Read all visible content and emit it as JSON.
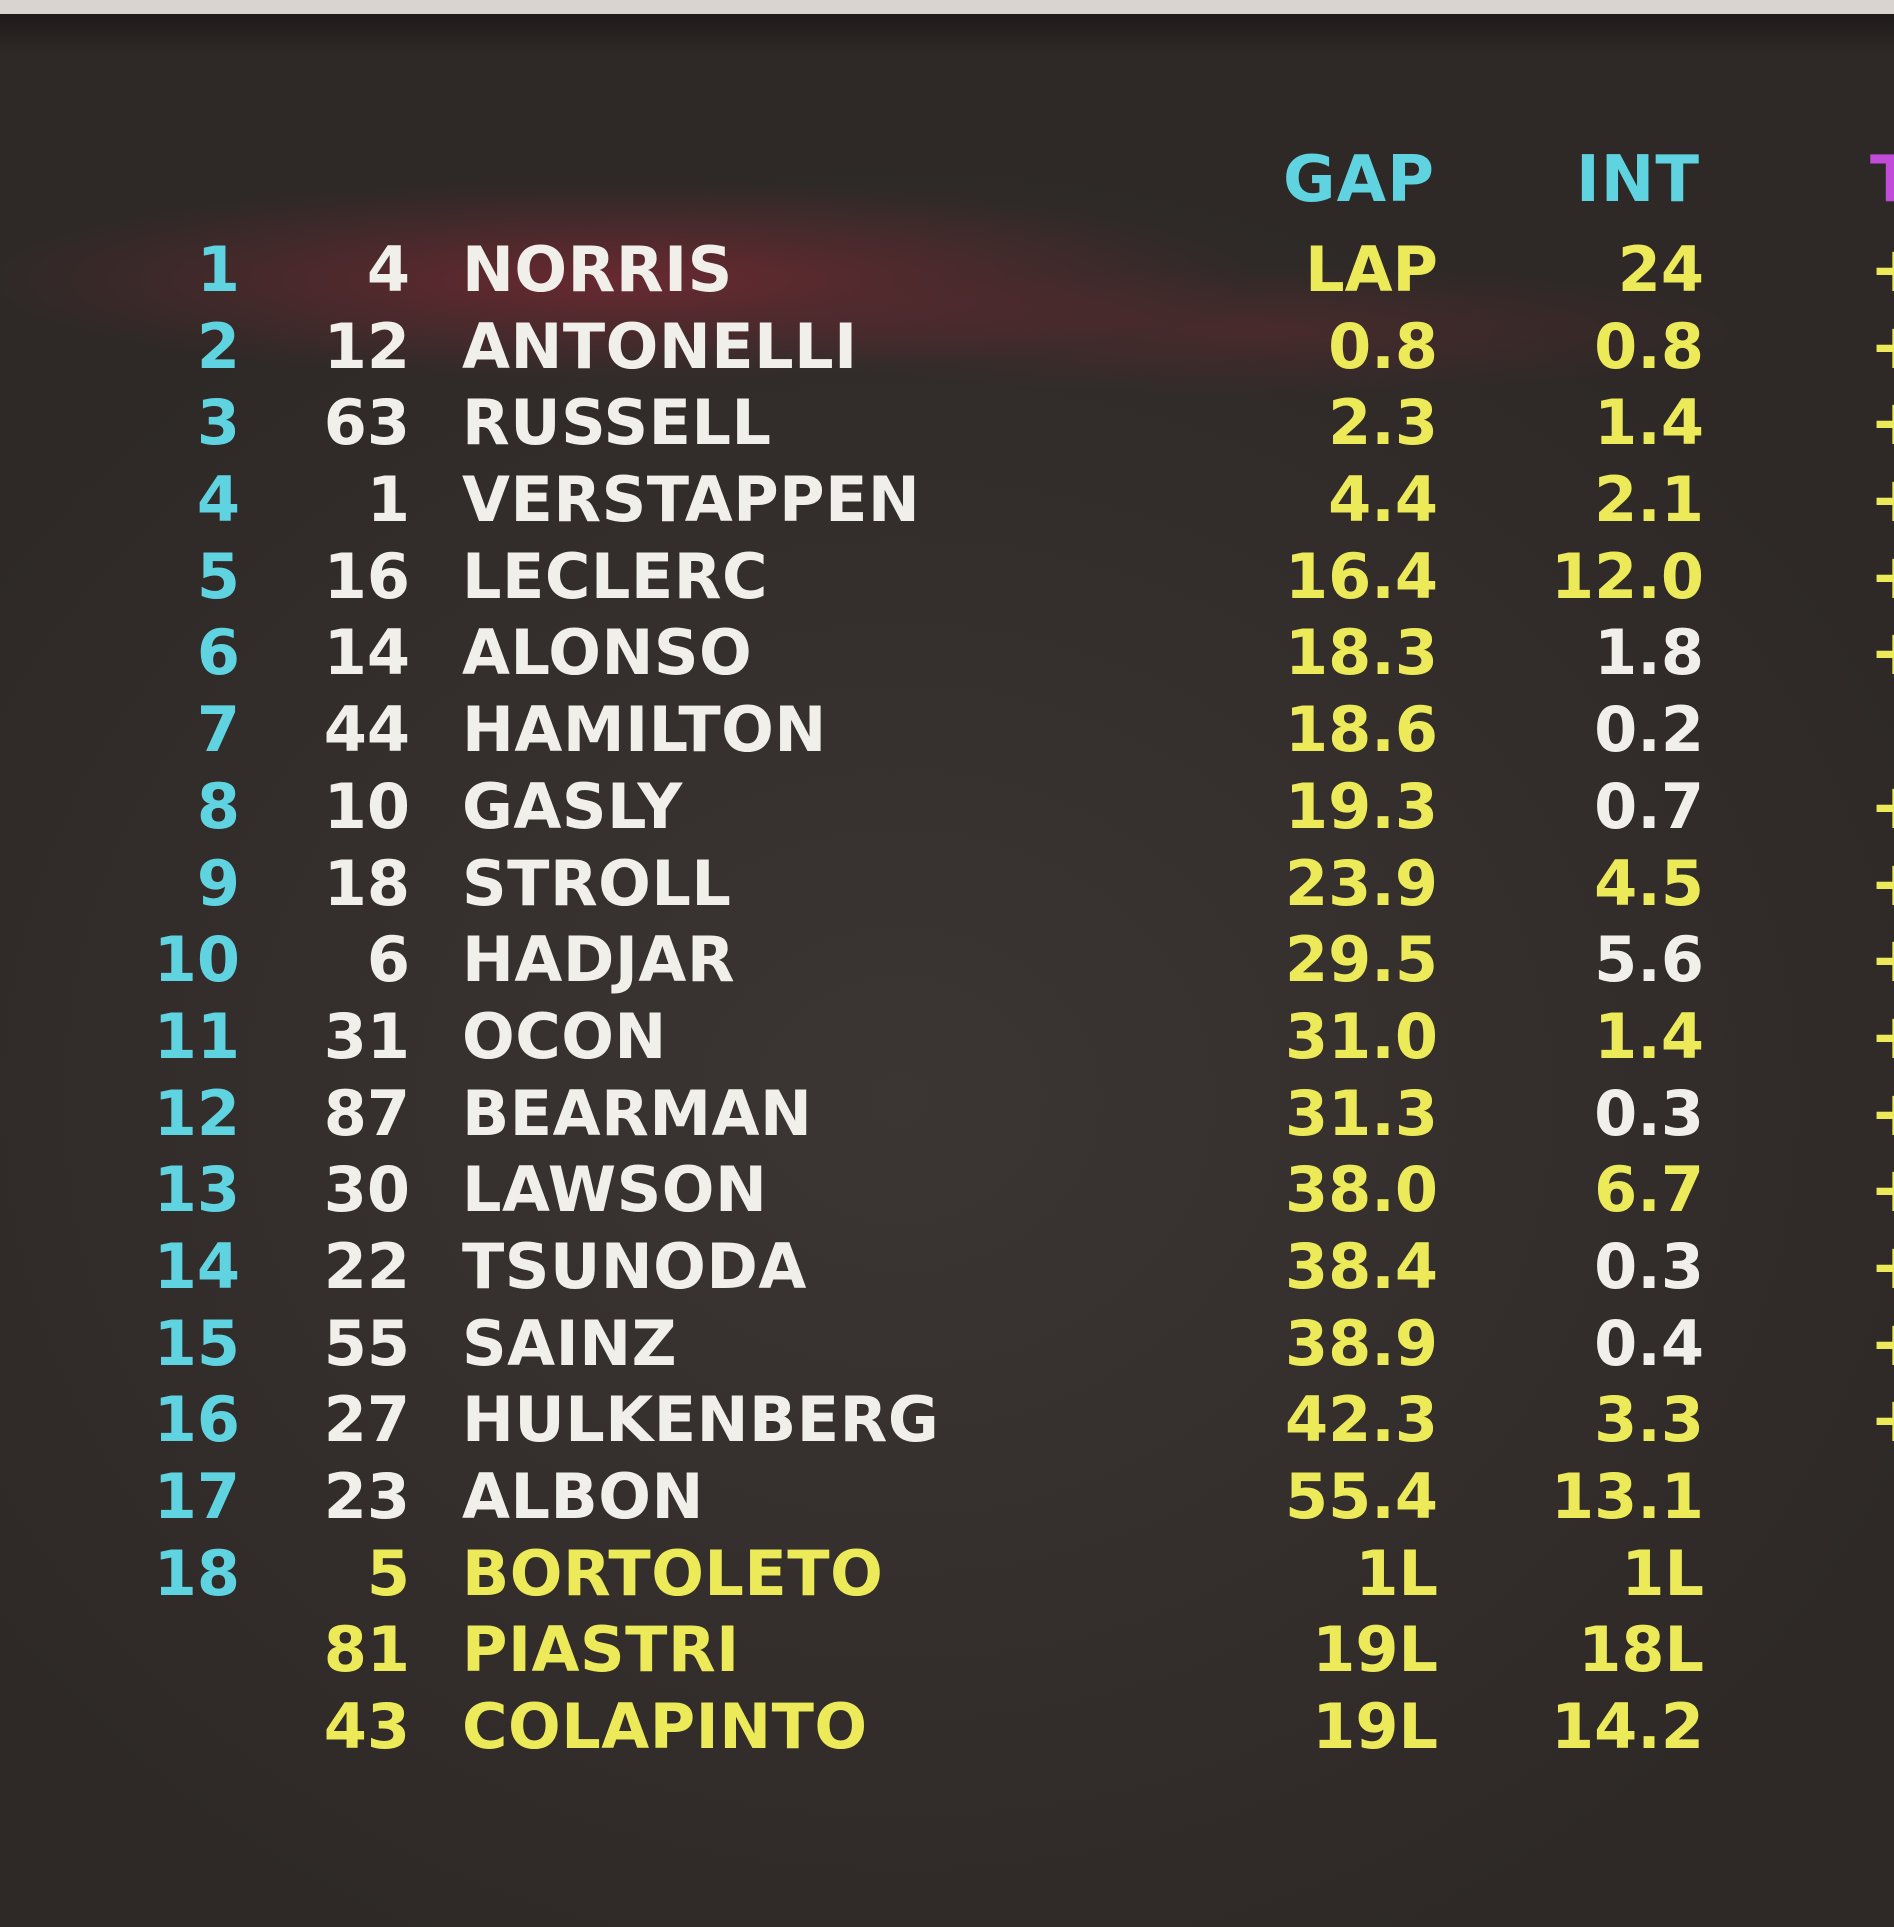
{
  "headers": {
    "gap": "GAP",
    "int": "INT"
  },
  "colors": {
    "header": "#5fd3e0",
    "position": "#5fd3e0",
    "driver_text": "#f1efe9",
    "highlight_yellow": "#ecea59",
    "cut_header_purple": "#c24bd9",
    "background": "#332e2c"
  },
  "rows": [
    {
      "pos": "1",
      "num": "4",
      "name": "NORRIS",
      "gap": "LAP",
      "int": "24",
      "edge": "+",
      "name_yellow": false,
      "int_yellow": true
    },
    {
      "pos": "2",
      "num": "12",
      "name": "ANTONELLI",
      "gap": "0.8",
      "int": "0.8",
      "edge": "+",
      "name_yellow": false,
      "int_yellow": true
    },
    {
      "pos": "3",
      "num": "63",
      "name": "RUSSELL",
      "gap": "2.3",
      "int": "1.4",
      "edge": "+",
      "name_yellow": false,
      "int_yellow": true
    },
    {
      "pos": "4",
      "num": "1",
      "name": "VERSTAPPEN",
      "gap": "4.4",
      "int": "2.1",
      "edge": "+",
      "name_yellow": false,
      "int_yellow": true
    },
    {
      "pos": "5",
      "num": "16",
      "name": "LECLERC",
      "gap": "16.4",
      "int": "12.0",
      "edge": "+",
      "name_yellow": false,
      "int_yellow": true
    },
    {
      "pos": "6",
      "num": "14",
      "name": "ALONSO",
      "gap": "18.3",
      "int": "1.8",
      "edge": "+",
      "name_yellow": false,
      "int_yellow": false
    },
    {
      "pos": "7",
      "num": "44",
      "name": "HAMILTON",
      "gap": "18.6",
      "int": "0.2",
      "edge": "",
      "name_yellow": false,
      "int_yellow": false
    },
    {
      "pos": "8",
      "num": "10",
      "name": "GASLY",
      "gap": "19.3",
      "int": "0.7",
      "edge": "+",
      "name_yellow": false,
      "int_yellow": false
    },
    {
      "pos": "9",
      "num": "18",
      "name": "STROLL",
      "gap": "23.9",
      "int": "4.5",
      "edge": "+",
      "name_yellow": false,
      "int_yellow": true
    },
    {
      "pos": "10",
      "num": "6",
      "name": "HADJAR",
      "gap": "29.5",
      "int": "5.6",
      "edge": "+",
      "name_yellow": false,
      "int_yellow": false
    },
    {
      "pos": "11",
      "num": "31",
      "name": "OCON",
      "gap": "31.0",
      "int": "1.4",
      "edge": "+",
      "name_yellow": false,
      "int_yellow": true
    },
    {
      "pos": "12",
      "num": "87",
      "name": "BEARMAN",
      "gap": "31.3",
      "int": "0.3",
      "edge": "+",
      "name_yellow": false,
      "int_yellow": false
    },
    {
      "pos": "13",
      "num": "30",
      "name": "LAWSON",
      "gap": "38.0",
      "int": "6.7",
      "edge": "+",
      "name_yellow": false,
      "int_yellow": true
    },
    {
      "pos": "14",
      "num": "22",
      "name": "TSUNODA",
      "gap": "38.4",
      "int": "0.3",
      "edge": "+",
      "name_yellow": false,
      "int_yellow": false
    },
    {
      "pos": "15",
      "num": "55",
      "name": "SAINZ",
      "gap": "38.9",
      "int": "0.4",
      "edge": "+",
      "name_yellow": false,
      "int_yellow": false
    },
    {
      "pos": "16",
      "num": "27",
      "name": "HULKENBERG",
      "gap": "42.3",
      "int": "3.3",
      "edge": "+",
      "name_yellow": false,
      "int_yellow": true
    },
    {
      "pos": "17",
      "num": "23",
      "name": "ALBON",
      "gap": "55.4",
      "int": "13.1",
      "edge": "",
      "name_yellow": false,
      "int_yellow": true
    },
    {
      "pos": "18",
      "num": "5",
      "name": "BORTOLETO",
      "gap": "1L",
      "int": "1L",
      "edge": "",
      "name_yellow": true,
      "int_yellow": true
    },
    {
      "pos": "",
      "num": "81",
      "name": "PIASTRI",
      "gap": "19L",
      "int": "18L",
      "edge": "",
      "name_yellow": true,
      "int_yellow": true
    },
    {
      "pos": "",
      "num": "43",
      "name": "COLAPINTO",
      "gap": "19L",
      "int": "14.2",
      "edge": "",
      "name_yellow": true,
      "int_yellow": true
    }
  ]
}
